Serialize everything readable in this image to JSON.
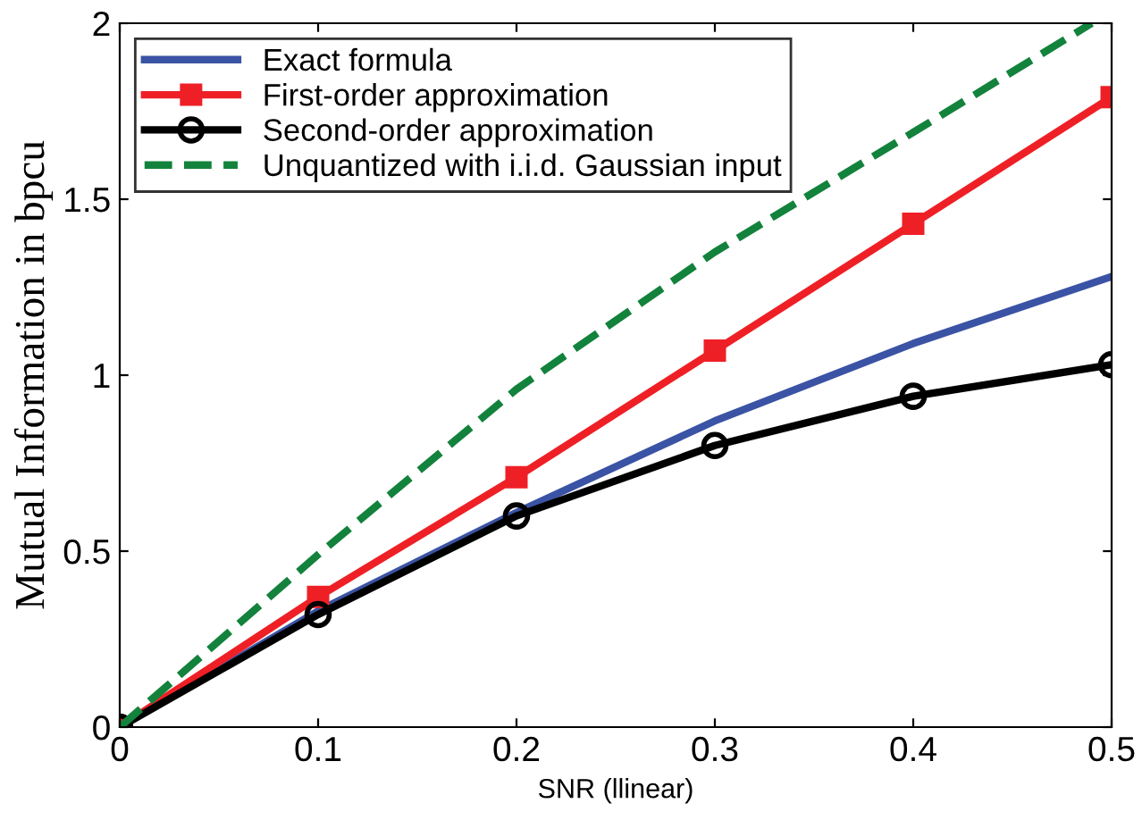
{
  "chart_data": {
    "type": "line",
    "xlabel": "SNR (llinear)",
    "ylabel": "Mutual Information in bpcu",
    "xlim": [
      0,
      0.5
    ],
    "ylim": [
      0,
      2
    ],
    "xticks": [
      0,
      0.1,
      0.2,
      0.3,
      0.4,
      0.5
    ],
    "yticks": [
      0,
      0.5,
      1,
      1.5,
      2
    ],
    "grid": false,
    "legend": "top left",
    "series": [
      {
        "name": "Exact formula",
        "color": "#3a53a4",
        "marker": "none",
        "line_style": "solid",
        "x": [
          0,
          0.1,
          0.2,
          0.3,
          0.4,
          0.5
        ],
        "values": [
          0,
          0.33,
          0.61,
          0.87,
          1.09,
          1.28
        ]
      },
      {
        "name": "First-order approximation",
        "color": "#ee2026",
        "marker": "square",
        "line_style": "solid",
        "x": [
          0,
          0.1,
          0.2,
          0.3,
          0.4,
          0.5
        ],
        "values": [
          0,
          0.37,
          0.71,
          1.07,
          1.43,
          1.79
        ]
      },
      {
        "name": "Second-order approximation",
        "color": "#000000",
        "marker": "circle",
        "line_style": "solid",
        "x": [
          0,
          0.1,
          0.2,
          0.3,
          0.4,
          0.5
        ],
        "values": [
          0,
          0.32,
          0.6,
          0.8,
          0.94,
          1.03
        ]
      },
      {
        "name": "Unquantized with i.i.d. Gaussian input",
        "color": "#13823c",
        "marker": "none",
        "line_style": "dashed",
        "x": [
          0,
          0.1,
          0.2,
          0.3,
          0.4,
          0.49
        ],
        "values": [
          0,
          0.49,
          0.96,
          1.35,
          1.69,
          2.0
        ]
      }
    ]
  }
}
